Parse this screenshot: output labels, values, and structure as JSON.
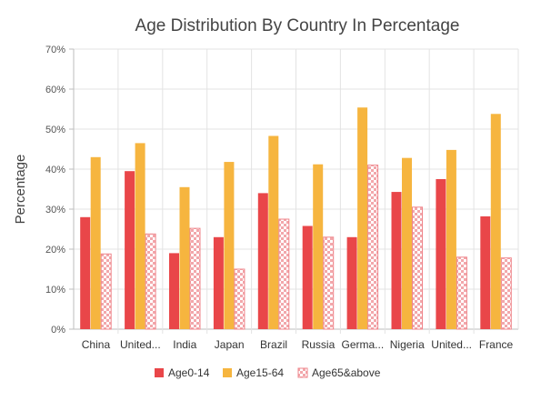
{
  "chart_data": {
    "type": "bar",
    "title": "Age Distribution By Country In Percentage",
    "xlabel": "",
    "ylabel": "Percentage",
    "ylim": [
      0,
      70
    ],
    "yticks": [
      "0%",
      "10%",
      "20%",
      "30%",
      "40%",
      "50%",
      "60%",
      "70%"
    ],
    "grid": true,
    "legend_position": "bottom",
    "categories": [
      "China",
      "United...",
      "India",
      "Japan",
      "Brazil",
      "Russia",
      "Germa...",
      "Nigeria",
      "United...",
      "France"
    ],
    "series": [
      {
        "name": "Age0-14",
        "color": "#e94649",
        "pattern": "solid",
        "values": [
          28,
          39.5,
          19,
          23,
          34,
          25.8,
          23,
          34.3,
          37.5,
          28.2
        ]
      },
      {
        "name": "Age15-64",
        "color": "#f6b53f",
        "pattern": "solid",
        "values": [
          43,
          46.5,
          35.5,
          41.8,
          48.3,
          41.2,
          55.4,
          42.8,
          44.8,
          53.8
        ]
      },
      {
        "name": "Age65&above",
        "color": "#ef858b",
        "pattern": "checker",
        "values": [
          18.8,
          23.8,
          25.2,
          15,
          27.5,
          23,
          41,
          30.5,
          18,
          17.8
        ]
      }
    ]
  }
}
